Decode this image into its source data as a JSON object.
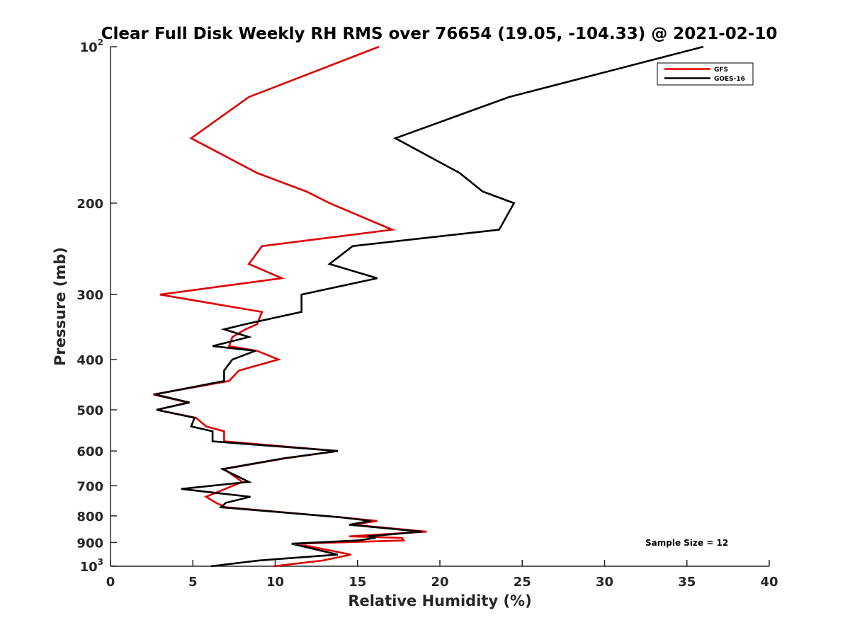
{
  "chart_data": {
    "type": "line",
    "title": "Clear Full Disk Weekly RH RMS over 76654 (19.05, -104.33) @ 2021-02-10",
    "xlabel": "Relative Humidity (%)",
    "ylabel": "Pressure (mb)",
    "xlim": [
      0,
      40
    ],
    "ylim": [
      100,
      1000
    ],
    "yscale": "log",
    "y_reversed": true,
    "grid": false,
    "legend_position": "top-right",
    "x_ticks": [
      {
        "value": 0,
        "label": "0"
      },
      {
        "value": 5,
        "label": "5"
      },
      {
        "value": 10,
        "label": "10"
      },
      {
        "value": 15,
        "label": "15"
      },
      {
        "value": 20,
        "label": "20"
      },
      {
        "value": 25,
        "label": "25"
      },
      {
        "value": 30,
        "label": "30"
      },
      {
        "value": 35,
        "label": "35"
      },
      {
        "value": 40,
        "label": "40"
      }
    ],
    "y_ticks": [
      {
        "value": 100,
        "base": "10",
        "exp": "2"
      },
      {
        "value": 200,
        "base": "200",
        "exp": ""
      },
      {
        "value": 300,
        "base": "300",
        "exp": ""
      },
      {
        "value": 400,
        "base": "400",
        "exp": ""
      },
      {
        "value": 500,
        "base": "500",
        "exp": ""
      },
      {
        "value": 600,
        "base": "600",
        "exp": ""
      },
      {
        "value": 700,
        "base": "700",
        "exp": ""
      },
      {
        "value": 800,
        "base": "800",
        "exp": ""
      },
      {
        "value": 900,
        "base": "900",
        "exp": ""
      },
      {
        "value": 1000,
        "base": "10",
        "exp": "3"
      }
    ],
    "series": [
      {
        "name": "GFS",
        "color": "#e00000",
        "points": [
          [
            16.3,
            100
          ],
          [
            8.4,
            125
          ],
          [
            4.9,
            150
          ],
          [
            8.9,
            175
          ],
          [
            11.9,
            190
          ],
          [
            13.3,
            200
          ],
          [
            17.1,
            225
          ],
          [
            9.2,
            242
          ],
          [
            8.4,
            262
          ],
          [
            10.4,
            279
          ],
          [
            3.0,
            300
          ],
          [
            9.2,
            324
          ],
          [
            8.9,
            342
          ],
          [
            8.2,
            350
          ],
          [
            7.4,
            362
          ],
          [
            7.2,
            377
          ],
          [
            8.9,
            385
          ],
          [
            10.2,
            400
          ],
          [
            7.8,
            420
          ],
          [
            7.2,
            440
          ],
          [
            2.6,
            467
          ],
          [
            4.7,
            484
          ],
          [
            2.8,
            500
          ],
          [
            5.2,
            518
          ],
          [
            5.8,
            538
          ],
          [
            6.9,
            550
          ],
          [
            6.9,
            575
          ],
          [
            13.8,
            600
          ],
          [
            10.6,
            620
          ],
          [
            6.9,
            650
          ],
          [
            8.0,
            688
          ],
          [
            5.8,
            735
          ],
          [
            6.4,
            755
          ],
          [
            7.0,
            770
          ],
          [
            14.0,
            805
          ],
          [
            16.2,
            818
          ],
          [
            14.7,
            832
          ],
          [
            19.2,
            858
          ],
          [
            14.5,
            876
          ],
          [
            17.7,
            882
          ],
          [
            17.8,
            892
          ],
          [
            11.3,
            905
          ],
          [
            14.6,
            950
          ],
          [
            12.9,
            975
          ],
          [
            9.9,
            1000
          ]
        ]
      },
      {
        "name": "GOES-16",
        "color": "#000000",
        "points": [
          [
            36.0,
            100
          ],
          [
            24.2,
            125
          ],
          [
            17.3,
            150
          ],
          [
            21.2,
            175
          ],
          [
            22.6,
            190
          ],
          [
            24.5,
            200
          ],
          [
            23.6,
            225
          ],
          [
            14.7,
            242
          ],
          [
            13.3,
            262
          ],
          [
            16.2,
            279
          ],
          [
            11.6,
            300
          ],
          [
            11.6,
            324
          ],
          [
            8.2,
            342
          ],
          [
            6.9,
            350
          ],
          [
            8.4,
            362
          ],
          [
            6.2,
            377
          ],
          [
            8.8,
            385
          ],
          [
            7.4,
            400
          ],
          [
            6.9,
            420
          ],
          [
            6.9,
            440
          ],
          [
            2.7,
            467
          ],
          [
            4.8,
            484
          ],
          [
            2.8,
            500
          ],
          [
            5.1,
            518
          ],
          [
            4.9,
            538
          ],
          [
            6.2,
            550
          ],
          [
            6.2,
            575
          ],
          [
            13.8,
            600
          ],
          [
            10.5,
            620
          ],
          [
            6.8,
            650
          ],
          [
            8.4,
            688
          ],
          [
            4.3,
            710
          ],
          [
            8.5,
            735
          ],
          [
            7.0,
            755
          ],
          [
            6.7,
            770
          ],
          [
            14.0,
            805
          ],
          [
            15.8,
            818
          ],
          [
            14.5,
            832
          ],
          [
            18.9,
            858
          ],
          [
            15.6,
            876
          ],
          [
            16.1,
            882
          ],
          [
            15.0,
            892
          ],
          [
            11.0,
            905
          ],
          [
            13.8,
            950
          ],
          [
            9.0,
            975
          ],
          [
            6.1,
            1000
          ]
        ]
      }
    ],
    "annotation": "Sample Size = 12"
  }
}
